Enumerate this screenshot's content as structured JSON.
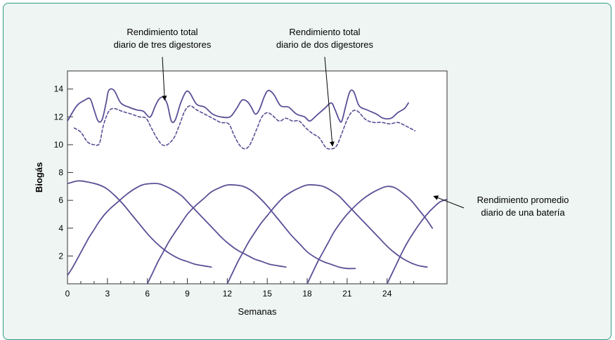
{
  "chart_data": {
    "type": "line",
    "xlabel": "Semanas",
    "ylabel": "Biogás",
    "xlim": [
      0,
      28.5
    ],
    "ylim": [
      0,
      15.3
    ],
    "x_ticks": [
      0,
      3,
      6,
      9,
      12,
      15,
      18,
      21,
      24
    ],
    "y_ticks": [
      2,
      4,
      6,
      8,
      10,
      12,
      14
    ],
    "colors": {
      "line": "#5a4f96",
      "frame_border": "#2f9b86",
      "frame_bg": "#eef5f2"
    },
    "annotations": [
      {
        "lines": [
          "Rendimiento total",
          "diario de tres digestores"
        ],
        "arrow_to": [
          7.3,
          13.2
        ]
      },
      {
        "lines": [
          "Rendimiento total",
          "diario de dos digestores"
        ],
        "arrow_to": [
          19.9,
          9.9
        ]
      },
      {
        "lines": [
          "Rendimiento promedio",
          "diario de una batería"
        ],
        "arrow_to": [
          27.5,
          6.3
        ]
      }
    ],
    "series": [
      {
        "style": "solid",
        "values": [
          [
            0,
            11.7
          ],
          [
            0.7,
            12.8
          ],
          [
            1.3,
            13.2
          ],
          [
            1.7,
            13.3
          ],
          [
            2.0,
            12.5
          ],
          [
            2.3,
            11.7
          ],
          [
            2.6,
            11.8
          ],
          [
            2.9,
            13.0
          ],
          [
            3.1,
            13.9
          ],
          [
            3.5,
            13.9
          ],
          [
            4.0,
            13.0
          ],
          [
            4.6,
            12.7
          ],
          [
            5.2,
            12.5
          ],
          [
            5.7,
            12.4
          ],
          [
            6.1,
            12.0
          ],
          [
            6.3,
            12.1
          ],
          [
            6.6,
            12.8
          ],
          [
            6.9,
            13.3
          ],
          [
            7.2,
            13.4
          ],
          [
            7.5,
            12.9
          ],
          [
            7.8,
            11.7
          ],
          [
            8.1,
            11.8
          ],
          [
            8.5,
            13.0
          ],
          [
            8.9,
            13.8
          ],
          [
            9.2,
            13.7
          ],
          [
            9.7,
            12.9
          ],
          [
            10.3,
            12.7
          ],
          [
            10.9,
            12.2
          ],
          [
            11.5,
            12.0
          ],
          [
            12.2,
            12.0
          ],
          [
            12.7,
            12.6
          ],
          [
            13.1,
            13.2
          ],
          [
            13.5,
            13.1
          ],
          [
            13.8,
            12.7
          ],
          [
            14.1,
            12.2
          ],
          [
            14.4,
            12.5
          ],
          [
            14.8,
            13.5
          ],
          [
            15.1,
            13.9
          ],
          [
            15.5,
            13.6
          ],
          [
            16.0,
            12.8
          ],
          [
            16.6,
            12.7
          ],
          [
            17.2,
            12.2
          ],
          [
            17.8,
            12.0
          ],
          [
            18.2,
            11.7
          ],
          [
            18.7,
            12.1
          ],
          [
            19.3,
            12.6
          ],
          [
            19.8,
            13.0
          ],
          [
            20.1,
            12.5
          ],
          [
            20.4,
            11.8
          ],
          [
            20.6,
            11.7
          ],
          [
            20.9,
            12.8
          ],
          [
            21.2,
            13.8
          ],
          [
            21.5,
            13.8
          ],
          [
            21.9,
            12.8
          ],
          [
            22.5,
            12.5
          ],
          [
            23.2,
            12.2
          ],
          [
            23.7,
            11.9
          ],
          [
            24.3,
            11.9
          ],
          [
            24.8,
            12.3
          ],
          [
            25.3,
            12.6
          ],
          [
            25.6,
            13.0
          ]
        ]
      },
      {
        "style": "dashed",
        "values": [
          [
            0.5,
            11.2
          ],
          [
            1.0,
            10.9
          ],
          [
            1.5,
            10.2
          ],
          [
            2.0,
            10.0
          ],
          [
            2.4,
            10.1
          ],
          [
            2.7,
            11.4
          ],
          [
            3.1,
            12.4
          ],
          [
            3.5,
            12.6
          ],
          [
            4.1,
            12.4
          ],
          [
            4.8,
            12.2
          ],
          [
            5.4,
            12.0
          ],
          [
            5.9,
            11.9
          ],
          [
            6.3,
            11.2
          ],
          [
            6.7,
            10.5
          ],
          [
            7.1,
            10.0
          ],
          [
            7.5,
            10.0
          ],
          [
            8.0,
            10.5
          ],
          [
            8.4,
            11.4
          ],
          [
            8.8,
            12.4
          ],
          [
            9.2,
            12.8
          ],
          [
            9.7,
            12.5
          ],
          [
            10.3,
            12.2
          ],
          [
            10.9,
            11.9
          ],
          [
            11.5,
            11.6
          ],
          [
            12.1,
            11.5
          ],
          [
            12.5,
            10.7
          ],
          [
            12.9,
            10.0
          ],
          [
            13.3,
            9.7
          ],
          [
            13.7,
            10.0
          ],
          [
            14.2,
            11.1
          ],
          [
            14.6,
            12.0
          ],
          [
            15.0,
            12.3
          ],
          [
            15.4,
            12.1
          ],
          [
            15.9,
            11.7
          ],
          [
            16.4,
            11.9
          ],
          [
            16.9,
            11.7
          ],
          [
            17.4,
            11.7
          ],
          [
            17.9,
            11.2
          ],
          [
            18.4,
            10.8
          ],
          [
            18.9,
            10.5
          ],
          [
            19.4,
            9.8
          ],
          [
            19.8,
            9.7
          ],
          [
            20.2,
            9.9
          ],
          [
            20.6,
            10.8
          ],
          [
            21.0,
            11.8
          ],
          [
            21.4,
            12.4
          ],
          [
            21.8,
            12.4
          ],
          [
            22.4,
            11.8
          ],
          [
            23.0,
            11.6
          ],
          [
            23.6,
            11.6
          ],
          [
            24.2,
            11.5
          ],
          [
            24.8,
            11.6
          ],
          [
            25.3,
            11.4
          ],
          [
            25.7,
            11.2
          ],
          [
            26.1,
            11.0
          ]
        ]
      },
      {
        "style": "solid",
        "values": [
          [
            0,
            7.2
          ],
          [
            0.8,
            7.4
          ],
          [
            1.6,
            7.3
          ],
          [
            2.4,
            7.1
          ],
          [
            3.0,
            6.8
          ],
          [
            3.6,
            6.3
          ],
          [
            4.2,
            5.7
          ],
          [
            4.8,
            5.0
          ],
          [
            5.4,
            4.3
          ],
          [
            6.0,
            3.6
          ],
          [
            6.6,
            3.0
          ],
          [
            7.2,
            2.5
          ],
          [
            7.8,
            2.1
          ],
          [
            8.4,
            1.8
          ],
          [
            9.0,
            1.6
          ],
          [
            9.6,
            1.4
          ],
          [
            10.2,
            1.3
          ],
          [
            10.8,
            1.2
          ]
        ]
      },
      {
        "style": "solid",
        "values": [
          [
            0,
            0.6
          ],
          [
            0.4,
            1.2
          ],
          [
            0.8,
            1.9
          ],
          [
            1.2,
            2.6
          ],
          [
            1.6,
            3.3
          ],
          [
            2.0,
            3.9
          ],
          [
            2.4,
            4.5
          ],
          [
            2.8,
            5.0
          ],
          [
            3.2,
            5.4
          ],
          [
            3.8,
            5.9
          ],
          [
            4.4,
            6.4
          ],
          [
            5.0,
            6.8
          ],
          [
            5.6,
            7.1
          ],
          [
            6.2,
            7.2
          ],
          [
            6.8,
            7.2
          ],
          [
            7.4,
            7.0
          ],
          [
            8.0,
            6.7
          ],
          [
            8.6,
            6.3
          ],
          [
            9.2,
            5.7
          ],
          [
            9.8,
            5.1
          ],
          [
            10.4,
            4.5
          ],
          [
            11.0,
            3.9
          ],
          [
            11.6,
            3.3
          ],
          [
            12.2,
            2.8
          ],
          [
            12.8,
            2.4
          ],
          [
            13.4,
            2.1
          ],
          [
            14.0,
            1.8
          ],
          [
            14.6,
            1.6
          ],
          [
            15.2,
            1.4
          ],
          [
            15.8,
            1.3
          ],
          [
            16.4,
            1.2
          ]
        ]
      },
      {
        "style": "solid",
        "values": [
          [
            6.0,
            0
          ],
          [
            6.4,
            0.8
          ],
          [
            6.8,
            1.6
          ],
          [
            7.2,
            2.3
          ],
          [
            7.6,
            3.0
          ],
          [
            8.0,
            3.6
          ],
          [
            8.5,
            4.3
          ],
          [
            9.0,
            5.0
          ],
          [
            9.6,
            5.6
          ],
          [
            10.2,
            6.1
          ],
          [
            10.8,
            6.6
          ],
          [
            11.4,
            6.9
          ],
          [
            12.0,
            7.1
          ],
          [
            12.6,
            7.1
          ],
          [
            13.2,
            7.0
          ],
          [
            13.8,
            6.7
          ],
          [
            14.4,
            6.2
          ],
          [
            15.0,
            5.6
          ],
          [
            15.6,
            4.9
          ],
          [
            16.2,
            4.2
          ],
          [
            16.8,
            3.5
          ],
          [
            17.4,
            2.9
          ],
          [
            18.0,
            2.3
          ],
          [
            18.6,
            1.9
          ],
          [
            19.2,
            1.6
          ],
          [
            19.8,
            1.4
          ],
          [
            20.4,
            1.2
          ],
          [
            21.0,
            1.1
          ],
          [
            21.6,
            1.1
          ]
        ]
      },
      {
        "style": "solid",
        "values": [
          [
            12.0,
            0
          ],
          [
            12.4,
            0.8
          ],
          [
            12.8,
            1.6
          ],
          [
            13.2,
            2.3
          ],
          [
            13.6,
            3.0
          ],
          [
            14.0,
            3.6
          ],
          [
            14.5,
            4.3
          ],
          [
            15.0,
            4.9
          ],
          [
            15.6,
            5.6
          ],
          [
            16.2,
            6.2
          ],
          [
            16.8,
            6.6
          ],
          [
            17.4,
            6.9
          ],
          [
            18.0,
            7.1
          ],
          [
            18.6,
            7.1
          ],
          [
            19.2,
            7.0
          ],
          [
            19.8,
            6.7
          ],
          [
            20.4,
            6.3
          ],
          [
            21.0,
            5.7
          ],
          [
            21.6,
            5.1
          ],
          [
            22.2,
            4.5
          ],
          [
            22.8,
            3.9
          ],
          [
            23.4,
            3.3
          ],
          [
            24.0,
            2.7
          ],
          [
            24.6,
            2.2
          ],
          [
            25.2,
            1.8
          ],
          [
            25.8,
            1.5
          ],
          [
            26.4,
            1.3
          ],
          [
            27.0,
            1.2
          ]
        ]
      },
      {
        "style": "solid",
        "values": [
          [
            18.0,
            0
          ],
          [
            18.4,
            0.8
          ],
          [
            18.8,
            1.6
          ],
          [
            19.2,
            2.3
          ],
          [
            19.6,
            3.0
          ],
          [
            20.0,
            3.7
          ],
          [
            20.5,
            4.4
          ],
          [
            21.0,
            5.0
          ],
          [
            21.6,
            5.6
          ],
          [
            22.2,
            6.1
          ],
          [
            22.8,
            6.5
          ],
          [
            23.4,
            6.8
          ],
          [
            24.0,
            7.0
          ],
          [
            24.6,
            6.9
          ],
          [
            25.2,
            6.5
          ],
          [
            25.8,
            6.0
          ],
          [
            26.4,
            5.3
          ],
          [
            26.9,
            4.7
          ],
          [
            27.4,
            4.0
          ]
        ]
      },
      {
        "style": "solid",
        "values": [
          [
            24.0,
            0
          ],
          [
            24.4,
            0.8
          ],
          [
            24.8,
            1.6
          ],
          [
            25.2,
            2.4
          ],
          [
            25.6,
            3.1
          ],
          [
            26.0,
            3.7
          ],
          [
            26.5,
            4.4
          ],
          [
            27.0,
            5.0
          ],
          [
            27.5,
            5.5
          ],
          [
            28.0,
            5.9
          ],
          [
            28.6,
            6.1
          ],
          [
            29.2,
            6.3
          ],
          [
            29.7,
            6.4
          ]
        ]
      }
    ]
  }
}
